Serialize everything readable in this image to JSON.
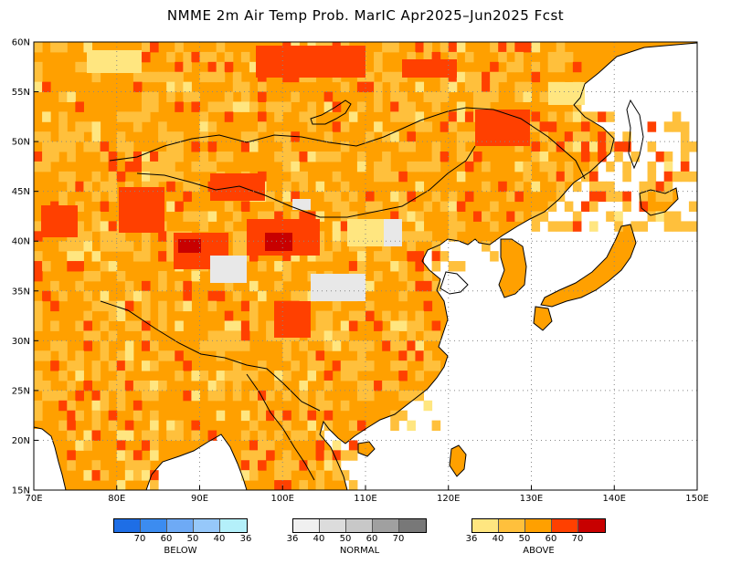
{
  "title": "NMME 2m Air Temp Prob. MarIC  Apr2025–Jun2025 Fcst",
  "map": {
    "lon_range": [
      70,
      150
    ],
    "lat_range": [
      15,
      60
    ],
    "lon_ticks": [
      "70E",
      "80E",
      "90E",
      "100E",
      "110E",
      "120E",
      "130E",
      "140E",
      "150E"
    ],
    "lat_ticks": [
      "15N",
      "20N",
      "25N",
      "30N",
      "35N",
      "40N",
      "45N",
      "50N",
      "55N",
      "60N"
    ],
    "gridlines": "dotted",
    "land_color_default": "#ffa500",
    "colors": {
      "above_36": "#ffe680",
      "above_40": "#ffc03c",
      "above_50": "#ffa000",
      "above_60": "#ff4000",
      "above_70": "#c80000",
      "normal_area": "#e8e8e8"
    }
  },
  "legends": {
    "below": {
      "label": "BELOW",
      "ticks": [
        "70",
        "60",
        "50",
        "40",
        "36"
      ],
      "colors": [
        "#1e6ee6",
        "#3c8cf0",
        "#6eaaf5",
        "#96c8fa",
        "#b4f0fa"
      ]
    },
    "normal": {
      "label": "NORMAL",
      "ticks": [
        "36",
        "40",
        "50",
        "60",
        "70"
      ],
      "colors": [
        "#f0f0f0",
        "#dcdcdc",
        "#c8c8c8",
        "#a0a0a0",
        "#787878"
      ]
    },
    "above": {
      "label": "ABOVE",
      "ticks": [
        "36",
        "40",
        "50",
        "60",
        "70"
      ],
      "colors": [
        "#ffe680",
        "#ffc03c",
        "#ffa000",
        "#ff4000",
        "#c80000"
      ]
    }
  }
}
